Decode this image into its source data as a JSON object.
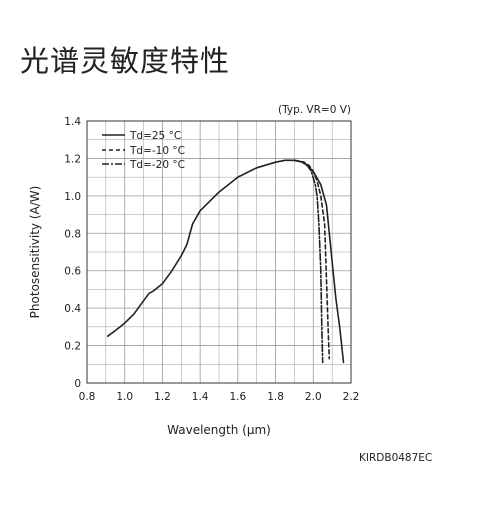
{
  "heading": "光谱灵敏度特性",
  "figure_code": "KIRDB0487EC",
  "colors": {
    "line": "#222222",
    "grid": "#9a9a9a",
    "frame": "#333333"
  },
  "chart_data": {
    "type": "line",
    "note": "(Typ. VR=0 V)",
    "xlabel": "Wavelength (μm)",
    "ylabel": "Photosensitivity (A/W)",
    "xlim": [
      0.8,
      2.2
    ],
    "ylim": [
      0,
      1.4
    ],
    "x_ticks": [
      "0.8",
      "1.0",
      "1.2",
      "1.4",
      "1.6",
      "1.8",
      "2.0",
      "2.2"
    ],
    "y_ticks": [
      "0",
      "0.2",
      "0.4",
      "0.6",
      "0.8",
      "1.0",
      "1.2",
      "1.4"
    ],
    "grid": true,
    "legend_position": "top-left",
    "series": [
      {
        "name": "Td=25 °C",
        "dash": "solid",
        "x": [
          0.91,
          0.95,
          1.0,
          1.05,
          1.1,
          1.13,
          1.15,
          1.2,
          1.25,
          1.3,
          1.33,
          1.36,
          1.4,
          1.5,
          1.6,
          1.7,
          1.8,
          1.85,
          1.9,
          1.95,
          2.0,
          2.04,
          2.07,
          2.1,
          2.12,
          2.14,
          2.16
        ],
        "y": [
          0.25,
          0.28,
          0.32,
          0.37,
          0.44,
          0.48,
          0.49,
          0.53,
          0.6,
          0.68,
          0.74,
          0.85,
          0.92,
          1.02,
          1.1,
          1.15,
          1.18,
          1.19,
          1.19,
          1.18,
          1.13,
          1.06,
          0.95,
          0.65,
          0.45,
          0.3,
          0.11
        ]
      },
      {
        "name": "Td=-10 °C",
        "dash": "dashed",
        "x": [
          1.9,
          1.95,
          1.98,
          2.0,
          2.02,
          2.04,
          2.06,
          2.07,
          2.08,
          2.085
        ],
        "y": [
          1.19,
          1.18,
          1.16,
          1.13,
          1.08,
          1.0,
          0.85,
          0.55,
          0.25,
          0.13
        ]
      },
      {
        "name": "Td=-20 °C",
        "dash": "dashdot",
        "x": [
          1.9,
          1.94,
          1.97,
          1.99,
          2.01,
          2.02,
          2.03,
          2.04,
          2.045,
          2.05
        ],
        "y": [
          1.19,
          1.18,
          1.16,
          1.13,
          1.06,
          1.0,
          0.85,
          0.6,
          0.3,
          0.11
        ]
      }
    ]
  }
}
